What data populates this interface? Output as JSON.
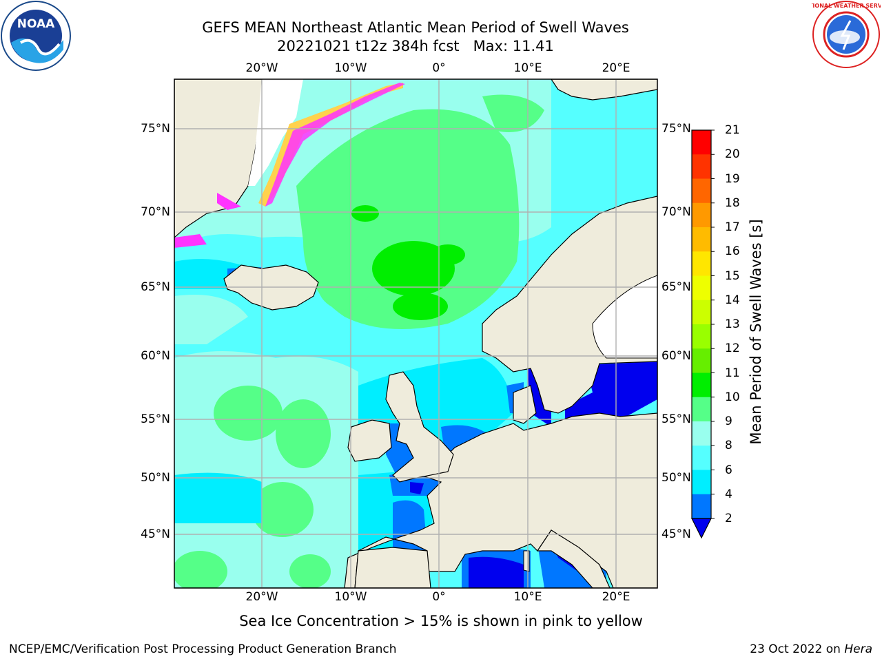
{
  "header": {
    "title_line1": "GEFS MEAN Northeast Atlantic Mean Period of Swell Waves",
    "title_line2": "20221021 t12z 384h fcst   Max: 11.41"
  },
  "logos": {
    "left": "NOAA",
    "right": "NATIONAL WEATHER SERVICE"
  },
  "map": {
    "lon_ticks": [
      "20°W",
      "10°W",
      "0°",
      "10°E",
      "20°E"
    ],
    "lat_ticks": [
      "75°N",
      "70°N",
      "65°N",
      "60°N",
      "55°N",
      "50°N",
      "45°N"
    ],
    "colors": {
      "land": "#efecdc",
      "ice_white": "#ffffff",
      "ice_pink": "#ff33ff",
      "ice_yellow": "#ffd24d",
      "grid": "#b0b0b0"
    }
  },
  "colorbar": {
    "label": "Mean Period of Swell Waves [s]",
    "levels": [
      "21",
      "20",
      "19",
      "18",
      "17",
      "16",
      "15",
      "14",
      "13",
      "12",
      "11",
      "10",
      "9",
      "8",
      "6",
      "4",
      "2"
    ],
    "colors": [
      "#ff0000",
      "#ff3300",
      "#ff6600",
      "#ff9900",
      "#ffbb00",
      "#ffe600",
      "#eeff00",
      "#ccff00",
      "#99ff00",
      "#66ee00",
      "#00ee00",
      "#55ff88",
      "#99ffee",
      "#55ffff",
      "#00eeff",
      "#0077ff",
      "#0000ee"
    ]
  },
  "note": "Sea Ice Concentration > 15% is shown in pink to yellow",
  "footer": {
    "left": "NCEP/EMC/Verification Post Processing Product Generation Branch",
    "date": "23 Oct 2022 on",
    "machine": "Hera"
  }
}
